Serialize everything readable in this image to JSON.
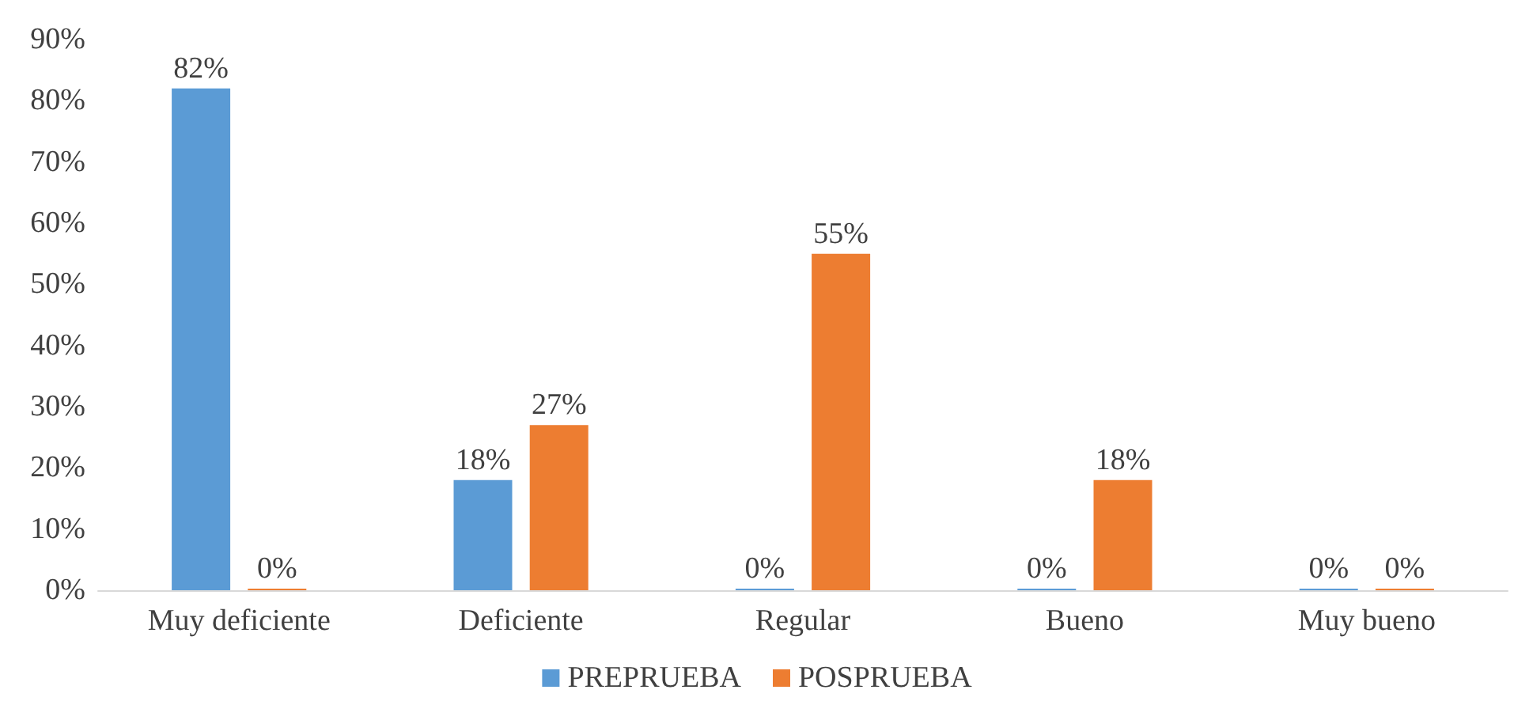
{
  "chart_data": {
    "type": "bar",
    "categories": [
      "Muy deficiente",
      "Deficiente",
      "Regular",
      "Bueno",
      "Muy bueno"
    ],
    "series": [
      {
        "name": "PREPRUEBA",
        "color": "#5b9bd5",
        "values": [
          82,
          18,
          0,
          0,
          0
        ],
        "value_labels": [
          "82%",
          "18%",
          "0%",
          "0%",
          "0%"
        ]
      },
      {
        "name": "POSPRUEBA",
        "color": "#ed7d31",
        "values": [
          0,
          27,
          55,
          18,
          0
        ],
        "value_labels": [
          "0%",
          "27%",
          "55%",
          "18%",
          "0%"
        ]
      }
    ],
    "ylim": [
      0,
      90
    ],
    "yticks": [
      {
        "value": 0,
        "label": "0%"
      },
      {
        "value": 10,
        "label": "10%"
      },
      {
        "value": 20,
        "label": "20%"
      },
      {
        "value": 30,
        "label": "30%"
      },
      {
        "value": 40,
        "label": "40%"
      },
      {
        "value": 50,
        "label": "50%"
      },
      {
        "value": 60,
        "label": "60%"
      },
      {
        "value": 70,
        "label": "70%"
      },
      {
        "value": 80,
        "label": "80%"
      },
      {
        "value": 90,
        "label": "90%"
      }
    ],
    "grid": false,
    "legend": "bottom"
  }
}
